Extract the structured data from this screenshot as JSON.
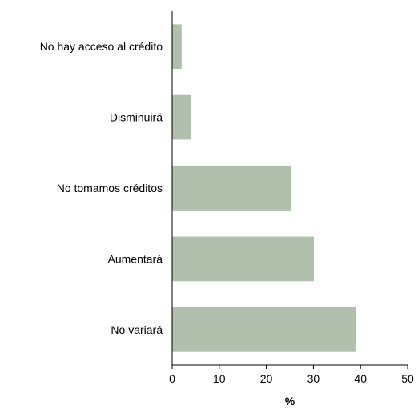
{
  "chart_data": {
    "type": "bar",
    "orientation": "horizontal",
    "categories": [
      "No hay acceso al crédito",
      "Disminuirá",
      "No tomamos créditos",
      "Aumentará",
      "No variará"
    ],
    "values": [
      2,
      4,
      25.2,
      30.1,
      39
    ],
    "xlabel": "%",
    "ylabel": "",
    "xlim": [
      0,
      50
    ],
    "xticks": [
      "0",
      "10",
      "20",
      "30",
      "40",
      "50"
    ],
    "grid": false,
    "legend": "none",
    "colors": {
      "bar": "#b1bfad",
      "axis": "#000000",
      "text": "#000000"
    }
  }
}
